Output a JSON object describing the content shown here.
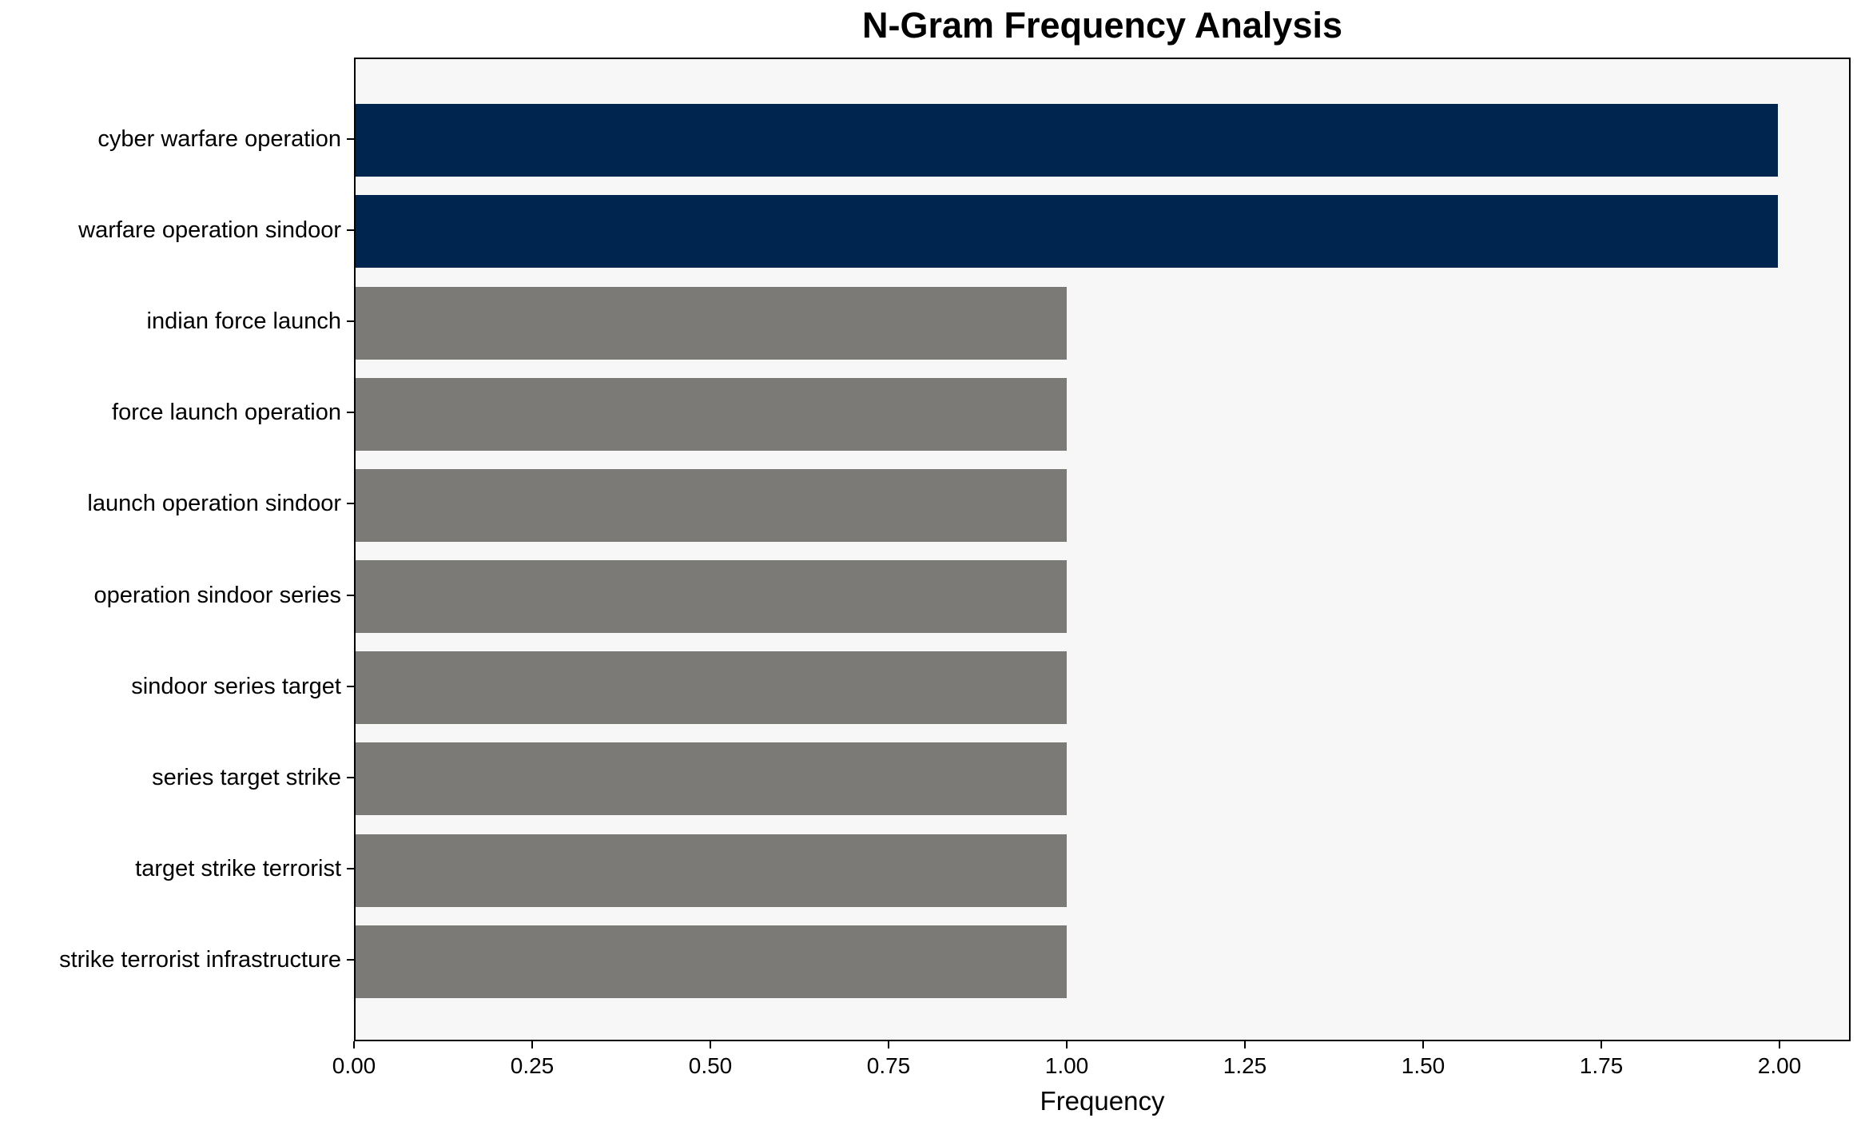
{
  "chart_data": {
    "type": "bar",
    "orientation": "horizontal",
    "title": "N-Gram Frequency Analysis",
    "xlabel": "Frequency",
    "ylabel": "",
    "categories": [
      "cyber warfare operation",
      "warfare operation sindoor",
      "indian force launch",
      "force launch operation",
      "launch operation sindoor",
      "operation sindoor series",
      "sindoor series target",
      "series target strike",
      "target strike terrorist",
      "strike terrorist infrastructure"
    ],
    "values": [
      2,
      2,
      1,
      1,
      1,
      1,
      1,
      1,
      1,
      1
    ],
    "bar_colors": [
      "#00254e",
      "#00254e",
      "#7b7a76",
      "#7b7a76",
      "#7b7a76",
      "#7b7a76",
      "#7b7a76",
      "#7b7a76",
      "#7b7a76",
      "#7b7a76"
    ],
    "xlim": [
      0,
      2.1
    ],
    "xticks": [
      {
        "value": 0.0,
        "label": "0.00"
      },
      {
        "value": 0.25,
        "label": "0.25"
      },
      {
        "value": 0.5,
        "label": "0.50"
      },
      {
        "value": 0.75,
        "label": "0.75"
      },
      {
        "value": 1.0,
        "label": "1.00"
      },
      {
        "value": 1.25,
        "label": "1.25"
      },
      {
        "value": 1.5,
        "label": "1.50"
      },
      {
        "value": 1.75,
        "label": "1.75"
      },
      {
        "value": 2.0,
        "label": "2.00"
      }
    ],
    "grid": false,
    "legend": null,
    "colors": {
      "highlight": "#00254e",
      "default": "#7b7a76",
      "plot_background": "#f7f7f7",
      "figure_background": "#ffffff",
      "spine": "#000000",
      "text": "#000000"
    }
  }
}
